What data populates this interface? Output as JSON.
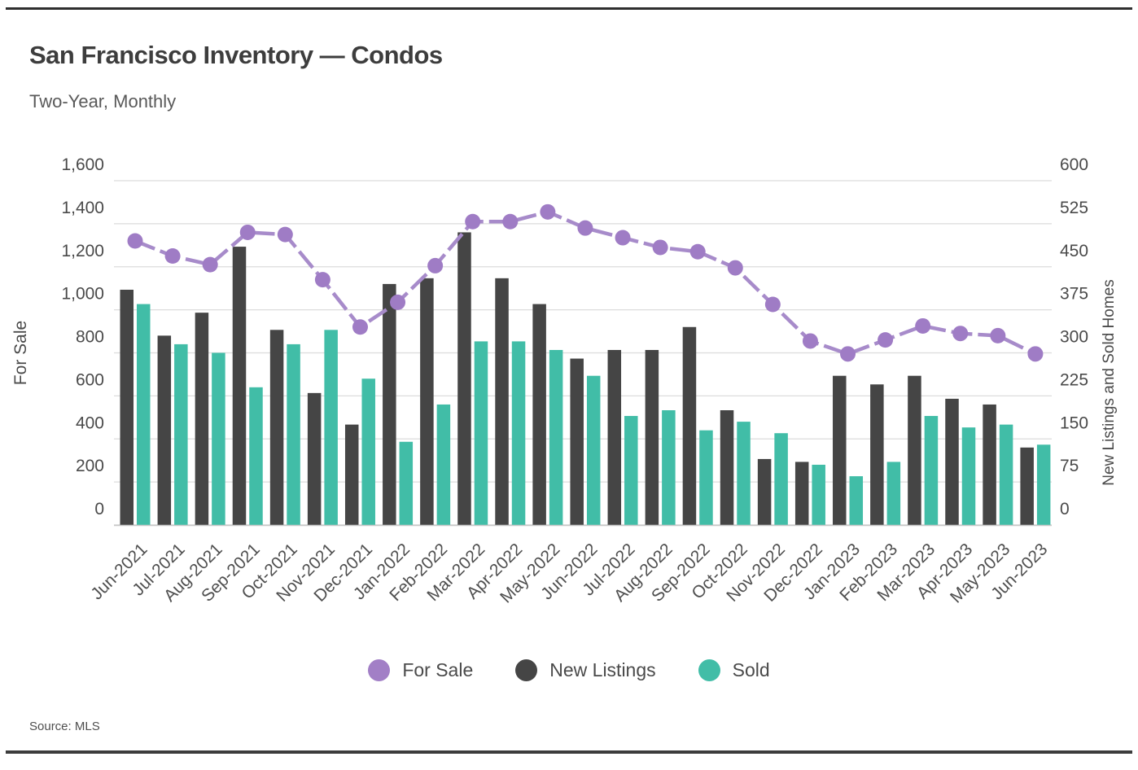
{
  "page": {
    "title": "San Francisco Inventory — Condos",
    "subtitle": "Two-Year, Monthly",
    "source": "Source: MLS"
  },
  "legend": [
    {
      "label": "For Sale",
      "color": "#a27fc6",
      "marker": "circle"
    },
    {
      "label": "New Listings",
      "color": "#454545",
      "marker": "circle"
    },
    {
      "label": "Sold",
      "color": "#41bda7",
      "marker": "circle"
    }
  ],
  "chart_data": {
    "type": "combo-bar-line",
    "title": "San Francisco Inventory — Condos",
    "subtitle": "Two-Year, Monthly",
    "categories": [
      "Jun-2021",
      "Jul-2021",
      "Aug-2021",
      "Sep-2021",
      "Oct-2021",
      "Nov-2021",
      "Dec-2021",
      "Jan-2022",
      "Feb-2022",
      "Mar-2022",
      "Apr-2022",
      "May-2022",
      "Jun-2022",
      "Jul-2022",
      "Aug-2022",
      "Sep-2022",
      "Oct-2022",
      "Nov-2022",
      "Dec-2022",
      "Jan-2023",
      "Feb-2023",
      "Mar-2023",
      "Apr-2023",
      "May-2023",
      "Jun-2023"
    ],
    "series": [
      {
        "name": "For Sale",
        "type": "line",
        "axis": "left",
        "color": "#a78bca",
        "dot_color": "#9f7cc5",
        "values": [
          1320,
          1250,
          1210,
          1360,
          1350,
          1140,
          920,
          1035,
          1205,
          1410,
          1410,
          1455,
          1380,
          1335,
          1290,
          1270,
          1195,
          1025,
          855,
          795,
          860,
          925,
          890,
          880,
          795
        ]
      },
      {
        "name": "New Listings",
        "type": "bar",
        "axis": "right",
        "color": "#454545",
        "values": [
          410,
          330,
          370,
          485,
          340,
          230,
          175,
          420,
          430,
          510,
          430,
          385,
          290,
          305,
          305,
          345,
          200,
          115,
          110,
          260,
          245,
          260,
          220,
          210,
          135
        ]
      },
      {
        "name": "Sold",
        "type": "bar",
        "axis": "right",
        "color": "#41bda7",
        "values": [
          385,
          315,
          300,
          240,
          315,
          340,
          255,
          145,
          210,
          320,
          320,
          305,
          260,
          190,
          200,
          165,
          180,
          160,
          105,
          85,
          110,
          190,
          170,
          175,
          140
        ]
      }
    ],
    "left_axis": {
      "label": "For Sale",
      "min": 0,
      "max": 1600,
      "step": 200,
      "ticks": [
        "0",
        "200",
        "400",
        "600",
        "800",
        "1,000",
        "1,200",
        "1,400",
        "1,600"
      ]
    },
    "right_axis": {
      "label": "New Listings and Sold Homes",
      "min": 0,
      "max": 600,
      "step": 75,
      "ticks": [
        "0",
        "75",
        "150",
        "225",
        "300",
        "375",
        "450",
        "525",
        "600"
      ]
    },
    "grid": true,
    "grid_color": "#dcdcdc",
    "axis_text_color": "#4a4a4a",
    "legend_position": "bottom",
    "source": "Source: MLS"
  }
}
